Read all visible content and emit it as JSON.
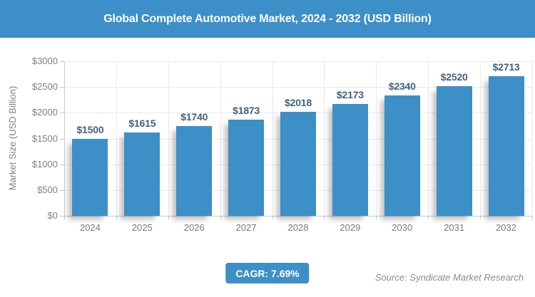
{
  "header": {
    "title": "Global Complete Automotive Market, 2024 - 2032 (USD Billion)",
    "bg_color": "#3d8fc8"
  },
  "chart_data": {
    "type": "bar",
    "title": "Global Complete Automotive Market, 2024 - 2032 (USD Billion)",
    "categories": [
      "2024",
      "2025",
      "2026",
      "2027",
      "2028",
      "2029",
      "2030",
      "2031",
      "2032"
    ],
    "values": [
      1500,
      1615,
      1740,
      1873,
      2018,
      2173,
      2340,
      2520,
      2713
    ],
    "bar_labels": [
      "$1500",
      "$1615",
      "$1740",
      "$1873",
      "$2018",
      "$2173",
      "$2340",
      "$2520",
      "$2713"
    ],
    "ylabel": "Market Size (USD Billion)",
    "xlabel": "",
    "ylim": [
      0,
      3000
    ],
    "ytick_values": [
      0,
      500,
      1000,
      1500,
      2000,
      2500,
      3000
    ],
    "ytick_labels": [
      "$0",
      "$500",
      "$1000",
      "$1500",
      "$2000",
      "$2500",
      "$3000"
    ],
    "grid": true,
    "legend": false,
    "bar_color": "#3d8fc8",
    "value_label_color": "#44607f",
    "axis_color": "#c6c6c6",
    "grid_color": "#e9e9e9",
    "tick_label_color": "#7f7f7f"
  },
  "footer": {
    "cagr_label": "CAGR: 7.69%",
    "badge_color": "#3d8fc8",
    "source": "Source: Syndicate Market Research"
  }
}
